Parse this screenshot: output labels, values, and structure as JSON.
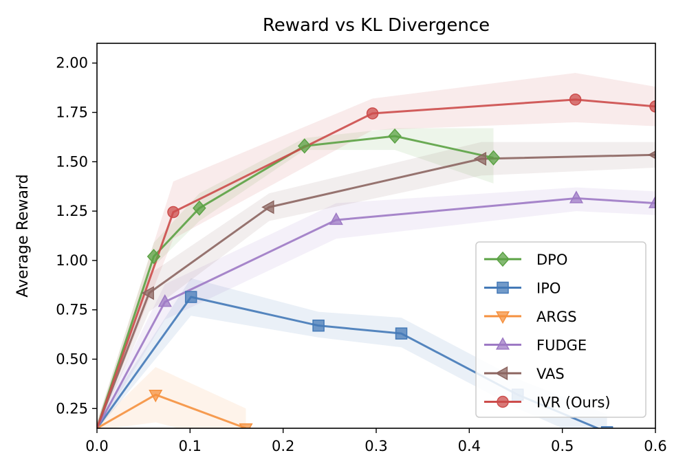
{
  "chart_data": {
    "type": "line",
    "title": "Reward vs KL Divergence",
    "xlabel": "",
    "ylabel": "Average Reward",
    "xlim": [
      0.0,
      0.6
    ],
    "ylim": [
      0.15,
      2.1
    ],
    "x_ticks": [
      "0.0",
      "0.1",
      "0.2",
      "0.3",
      "0.4",
      "0.5",
      "0.6"
    ],
    "x_tick_values": [
      0.0,
      0.1,
      0.2,
      0.3,
      0.4,
      0.5,
      0.6
    ],
    "y_ticks": [
      "0.25",
      "0.50",
      "0.75",
      "1.00",
      "1.25",
      "1.50",
      "1.75",
      "2.00"
    ],
    "y_tick_values": [
      0.25,
      0.5,
      0.75,
      1.0,
      1.25,
      1.5,
      1.75,
      2.0
    ],
    "grid": false,
    "legend_position": "lower-right",
    "series": [
      {
        "name": "DPO",
        "color": "#5ba244",
        "marker": "diamond",
        "x": [
          0.0,
          0.061,
          0.11,
          0.223,
          0.32,
          0.426
        ],
        "y": [
          0.15,
          1.02,
          1.265,
          1.58,
          1.63,
          1.52
        ],
        "band_low": [
          0.14,
          0.97,
          1.2,
          1.56,
          1.56,
          1.39
        ],
        "band_high": [
          0.18,
          1.09,
          1.34,
          1.62,
          1.67,
          1.67
        ]
      },
      {
        "name": "IPO",
        "color": "#4479b7",
        "marker": "square",
        "x": [
          0.0,
          0.101,
          0.238,
          0.327,
          0.452,
          0.548
        ],
        "y": [
          0.15,
          0.815,
          0.67,
          0.63,
          0.32,
          0.13
        ],
        "band_low": [
          0.14,
          0.72,
          0.61,
          0.56,
          0.25,
          0.05
        ],
        "band_high": [
          0.18,
          0.91,
          0.74,
          0.71,
          0.4,
          0.22
        ]
      },
      {
        "name": "ARGS",
        "color": "#f5913f",
        "marker": "triangle-down",
        "x": [
          0.0,
          0.063,
          0.16
        ],
        "y": [
          0.15,
          0.32,
          0.15
        ],
        "band_low": [
          0.14,
          0.18,
          0.06
        ],
        "band_high": [
          0.17,
          0.46,
          0.25
        ]
      },
      {
        "name": "FUDGE",
        "color": "#9d79c4",
        "marker": "triangle-up",
        "x": [
          0.0,
          0.073,
          0.257,
          0.515,
          0.6
        ],
        "y": [
          0.15,
          0.79,
          1.205,
          1.315,
          1.29
        ],
        "band_low": [
          0.14,
          0.7,
          1.11,
          1.25,
          1.23
        ],
        "band_high": [
          0.18,
          0.88,
          1.29,
          1.37,
          1.35
        ]
      },
      {
        "name": "VAS",
        "color": "#8c6560",
        "marker": "triangle-left",
        "x": [
          0.0,
          0.056,
          0.185,
          0.413,
          0.6
        ],
        "y": [
          0.15,
          0.835,
          1.27,
          1.515,
          1.535
        ],
        "band_low": [
          0.14,
          0.74,
          1.2,
          1.43,
          1.47
        ],
        "band_high": [
          0.18,
          0.93,
          1.34,
          1.6,
          1.6
        ]
      },
      {
        "name": "IVR (Ours)",
        "color": "#cc4c4b",
        "marker": "circle",
        "x": [
          0.0,
          0.082,
          0.296,
          0.514,
          0.6
        ],
        "y": [
          0.15,
          1.245,
          1.745,
          1.815,
          1.78
        ],
        "band_low": [
          0.14,
          1.11,
          1.66,
          1.7,
          1.68
        ],
        "band_high": [
          0.18,
          1.4,
          1.82,
          1.95,
          1.88
        ]
      }
    ]
  }
}
